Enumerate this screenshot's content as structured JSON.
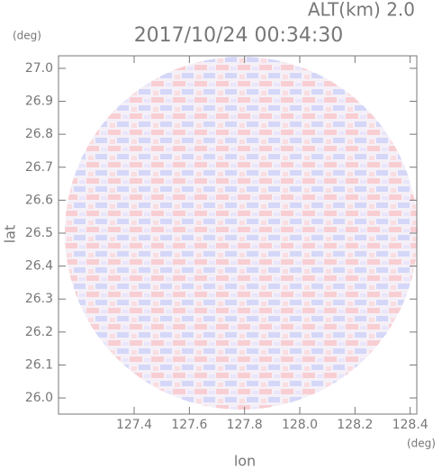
{
  "chart_data": {
    "type": "radar_ppi",
    "title": "2017/10/24 00:34:30",
    "subtitle": "ALT(km) 2.0",
    "x_label": "lon",
    "y_label": "lat",
    "x_unit": "(deg)",
    "y_unit": "(deg)",
    "xlim": [
      127.126,
      128.424
    ],
    "ylim": [
      25.951,
      27.038
    ],
    "xticks": [
      127.4,
      127.6,
      127.8,
      {
        "value": 128,
        "label": "128.0"
      },
      128.2,
      128.4
    ],
    "yticks": [
      {
        "value": 26,
        "label": "26.0"
      },
      26.1,
      26.2,
      26.3,
      26.4,
      26.5,
      26.6,
      26.7,
      26.8,
      26.9,
      {
        "value": 27,
        "label": "27.0"
      }
    ]
  }
}
